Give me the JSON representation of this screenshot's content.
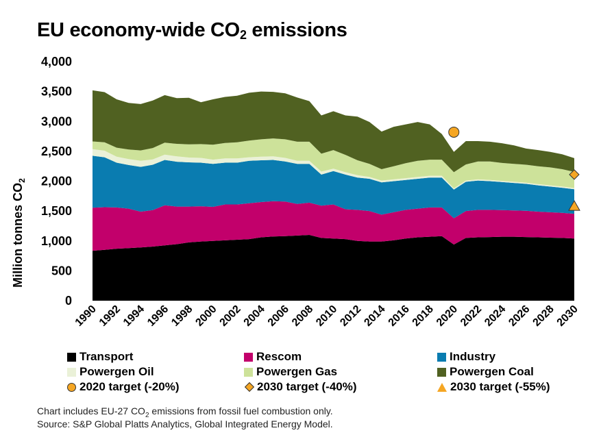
{
  "title": {
    "pre": "EU economy-wide CO",
    "sub": "2",
    "post": " emissions"
  },
  "colors": {
    "transport": "#000000",
    "rescom": "#c2006b",
    "industry": "#0a7cb0",
    "powergen_oil": "#eaf1d8",
    "powergen_gas": "#cde29a",
    "powergen_coal": "#506121",
    "target_fill": "#f5a623"
  },
  "legend": {
    "transport": "Transport",
    "rescom": "Rescom",
    "industry": "Industry",
    "powergen_oil": "Powergen Oil",
    "powergen_gas": "Powergen Gas",
    "powergen_coal": "Powergen Coal",
    "t2020": "2020 target (-20%)",
    "t2030a": "2030 target (-40%)",
    "t2030b": "2030 target (-55%)"
  },
  "footnote": {
    "line1_pre": "Chart includes EU-27 CO",
    "line1_sub": "2",
    "line1_post": " emissions from fossil fuel combustion only.",
    "line2": "Source: S&P Global Platts Analytics, Global Integrated Energy Model."
  },
  "chart_data": {
    "type": "area",
    "stacked": true,
    "ylabel": "Million tonnes CO2",
    "ylim": [
      0,
      4000
    ],
    "yticks": [
      0,
      500,
      1000,
      1500,
      2000,
      2500,
      3000,
      3500,
      4000
    ],
    "ytick_labels": [
      "0",
      "500",
      "1,000",
      "1,500",
      "2,000",
      "2,500",
      "3,000",
      "3,500",
      "4,000"
    ],
    "xlim": [
      1990,
      2030
    ],
    "xtick_labels": [
      "1990",
      "1992",
      "1994",
      "1996",
      "1998",
      "2000",
      "2002",
      "2004",
      "2006",
      "2008",
      "2010",
      "2012",
      "2014",
      "2016",
      "2018",
      "2020",
      "2022",
      "2024",
      "2026",
      "2028",
      "2030"
    ],
    "x": [
      1990,
      1991,
      1992,
      1993,
      1994,
      1995,
      1996,
      1997,
      1998,
      1999,
      2000,
      2001,
      2002,
      2003,
      2004,
      2005,
      2006,
      2007,
      2008,
      2009,
      2010,
      2011,
      2012,
      2013,
      2014,
      2015,
      2016,
      2017,
      2018,
      2019,
      2020,
      2021,
      2022,
      2023,
      2024,
      2025,
      2026,
      2027,
      2028,
      2029,
      2030
    ],
    "series": [
      {
        "name": "Transport",
        "key": "transport",
        "values": [
          835,
          850,
          870,
          880,
          890,
          905,
          925,
          945,
          975,
          990,
          1000,
          1010,
          1020,
          1030,
          1060,
          1075,
          1080,
          1090,
          1100,
          1050,
          1040,
          1030,
          1000,
          990,
          990,
          1010,
          1040,
          1060,
          1070,
          1080,
          940,
          1050,
          1060,
          1065,
          1070,
          1070,
          1065,
          1060,
          1055,
          1050,
          1040
        ]
      },
      {
        "name": "Rescom",
        "key": "rescom",
        "values": [
          720,
          715,
          690,
          660,
          600,
          610,
          670,
          630,
          600,
          590,
          570,
          600,
          590,
          600,
          590,
          590,
          580,
          530,
          540,
          540,
          570,
          500,
          520,
          510,
          450,
          470,
          480,
          480,
          490,
          480,
          440,
          450,
          460,
          455,
          445,
          440,
          440,
          430,
          425,
          420,
          415
        ]
      },
      {
        "name": "Industry",
        "key": "industry",
        "values": [
          870,
          835,
          750,
          730,
          750,
          760,
          760,
          750,
          740,
          730,
          720,
          700,
          700,
          710,
          700,
          690,
          670,
          670,
          650,
          520,
          560,
          580,
          540,
          540,
          540,
          520,
          500,
          500,
          500,
          500,
          480,
          490,
          490,
          480,
          470,
          460,
          450,
          440,
          430,
          420,
          410
        ]
      },
      {
        "name": "Powergen Oil",
        "key": "powergen_oil",
        "values": [
          110,
          110,
          100,
          100,
          100,
          90,
          90,
          90,
          80,
          80,
          70,
          70,
          70,
          60,
          60,
          60,
          60,
          50,
          50,
          50,
          40,
          40,
          40,
          30,
          30,
          30,
          30,
          30,
          30,
          30,
          20,
          20,
          20,
          20,
          20,
          20,
          20,
          20,
          20,
          20,
          20
        ]
      },
      {
        "name": "Powergen Gas",
        "key": "powergen_gas",
        "values": [
          130,
          140,
          150,
          160,
          175,
          190,
          200,
          210,
          220,
          230,
          250,
          260,
          270,
          280,
          290,
          300,
          310,
          320,
          320,
          300,
          310,
          290,
          250,
          220,
          190,
          220,
          250,
          270,
          270,
          270,
          270,
          270,
          300,
          310,
          300,
          300,
          300,
          300,
          300,
          290,
          270
        ]
      },
      {
        "name": "Powergen Coal",
        "key": "powergen_coal",
        "values": [
          855,
          840,
          810,
          780,
          775,
          795,
          795,
          765,
          780,
          700,
          760,
          770,
          780,
          800,
          800,
          780,
          770,
          740,
          680,
          640,
          650,
          660,
          730,
          700,
          630,
          660,
          650,
          650,
          590,
          430,
          340,
          390,
          340,
          330,
          330,
          310,
          270,
          270,
          260,
          250,
          230
        ]
      }
    ],
    "targets": [
      {
        "name": "2020 target (-20%)",
        "marker": "circle",
        "x": 2020,
        "y": 2820
      },
      {
        "name": "2030 target (-40%)",
        "marker": "diamond",
        "x": 2030,
        "y": 2110
      },
      {
        "name": "2030 target (-55%)",
        "marker": "triangle",
        "x": 2030,
        "y": 1580
      }
    ],
    "legend_position": "bottom",
    "grid": false
  }
}
